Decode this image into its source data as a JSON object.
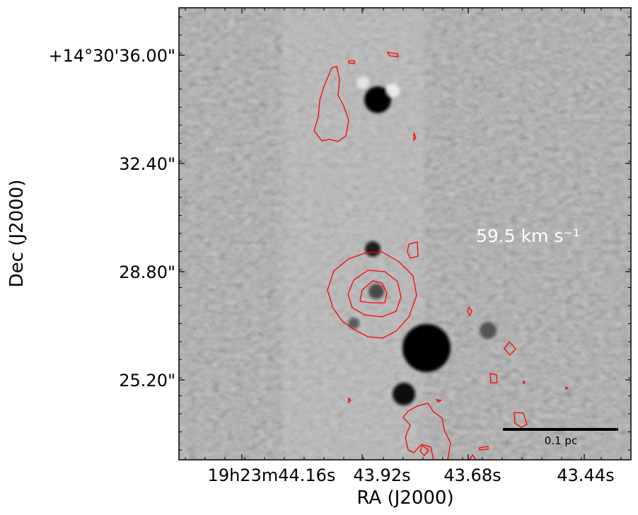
{
  "chart_data": {
    "type": "heatmap",
    "colormap": "grayscale",
    "xlabel": "RA (J2000)",
    "ylabel": "Dec (J2000)",
    "x_ticks": [
      "19h23m44.16s",
      "43.92s",
      "43.68s",
      "43.44s"
    ],
    "y_ticks": [
      "+14°30'36.00\"",
      "32.40\"",
      "28.80\"",
      "25.20\""
    ],
    "annotation": "59.5 km s⁻¹",
    "annotation_color": "#ffffff",
    "scale_bar_label": "0.1 pc",
    "contour_color": "#ff0000",
    "contour_levels": 3,
    "grid": false,
    "legend": "none"
  }
}
